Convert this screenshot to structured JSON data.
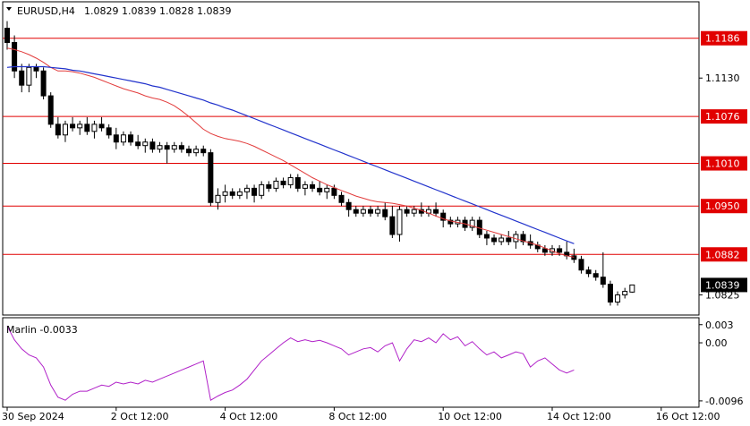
{
  "header": {
    "symbol": "EURUSD,H4",
    "ohlc": "1.0829 1.0839 1.0828 1.0839"
  },
  "colors": {
    "background": "#ffffff",
    "frame": "#000000",
    "grid": "none",
    "bull": "#000000",
    "bear": "#000000",
    "ma_fast": "#e23c3c",
    "ma_slow": "#2233cc",
    "level": "#e10000",
    "marlin": "#b020c8"
  },
  "chart_data": [
    {
      "type": "candlestick",
      "title": "EURUSD,H4",
      "ylim": [
        1.0798,
        1.1236
      ],
      "y_ticks": [
        1.0825,
        1.113
      ],
      "x_tick_labels": [
        "30 Sep 2024",
        "2 Oct 12:00",
        "4 Oct 12:00",
        "8 Oct 12:00",
        "10 Oct 12:00",
        "14 Oct 12:00",
        "16 Oct 12:00"
      ],
      "x_tick_index": [
        0,
        15,
        30,
        45,
        60,
        75,
        90
      ],
      "levels": [
        {
          "value": 1.1186,
          "label": "1.1186"
        },
        {
          "value": 1.1076,
          "label": "1.1076"
        },
        {
          "value": 1.101,
          "label": "1.1010"
        },
        {
          "value": 1.095,
          "label": "1.0950"
        },
        {
          "value": 1.0882,
          "label": "1.0882"
        }
      ],
      "current_price": {
        "value": 1.0839,
        "label": "1.0839"
      },
      "candles": [
        [
          1.12,
          1.121,
          1.117,
          1.118
        ],
        [
          1.118,
          1.119,
          1.113,
          1.114
        ],
        [
          1.114,
          1.115,
          1.111,
          1.112
        ],
        [
          1.112,
          1.115,
          1.111,
          1.1145
        ],
        [
          1.1145,
          1.115,
          1.113,
          1.114
        ],
        [
          1.114,
          1.1145,
          1.11,
          1.1105
        ],
        [
          1.1105,
          1.111,
          1.106,
          1.1065
        ],
        [
          1.1065,
          1.1075,
          1.1045,
          1.105
        ],
        [
          1.105,
          1.107,
          1.104,
          1.1065
        ],
        [
          1.1065,
          1.1075,
          1.1055,
          1.106
        ],
        [
          1.106,
          1.107,
          1.105,
          1.1065
        ],
        [
          1.1065,
          1.1075,
          1.105,
          1.1055
        ],
        [
          1.1055,
          1.107,
          1.1045,
          1.1065
        ],
        [
          1.1065,
          1.1075,
          1.1055,
          1.106
        ],
        [
          1.106,
          1.1065,
          1.1045,
          1.105
        ],
        [
          1.105,
          1.106,
          1.103,
          1.104
        ],
        [
          1.104,
          1.1055,
          1.1035,
          1.105
        ],
        [
          1.105,
          1.1055,
          1.1035,
          1.104
        ],
        [
          1.104,
          1.105,
          1.103,
          1.1035
        ],
        [
          1.1035,
          1.1045,
          1.1025,
          1.104
        ],
        [
          1.104,
          1.1045,
          1.1025,
          1.103
        ],
        [
          1.103,
          1.104,
          1.1025,
          1.1035
        ],
        [
          1.1035,
          1.104,
          1.101,
          1.103
        ],
        [
          1.103,
          1.104,
          1.1025,
          1.1035
        ],
        [
          1.1035,
          1.104,
          1.1025,
          1.103
        ],
        [
          1.103,
          1.1035,
          1.102,
          1.1025
        ],
        [
          1.1025,
          1.1035,
          1.102,
          1.103
        ],
        [
          1.103,
          1.1035,
          1.102,
          1.1025
        ],
        [
          1.1025,
          1.103,
          1.095,
          1.0955
        ],
        [
          1.0955,
          1.0975,
          1.0945,
          1.0965
        ],
        [
          1.0965,
          1.098,
          1.0955,
          1.097
        ],
        [
          1.097,
          1.0975,
          1.096,
          1.0965
        ],
        [
          1.0965,
          1.0975,
          1.096,
          1.097
        ],
        [
          1.097,
          1.098,
          1.096,
          1.0975
        ],
        [
          1.0975,
          1.098,
          1.0955,
          1.0965
        ],
        [
          1.0965,
          1.0985,
          1.096,
          1.098
        ],
        [
          1.098,
          1.0985,
          1.097,
          1.0975
        ],
        [
          1.0975,
          1.099,
          1.097,
          1.0985
        ],
        [
          1.0985,
          1.099,
          1.0975,
          1.098
        ],
        [
          1.098,
          1.0995,
          1.0975,
          1.099
        ],
        [
          1.099,
          1.0995,
          1.097,
          1.0975
        ],
        [
          1.0975,
          1.0985,
          1.0965,
          1.098
        ],
        [
          1.098,
          1.0985,
          1.097,
          1.0975
        ],
        [
          1.0975,
          1.0985,
          1.0965,
          1.097
        ],
        [
          1.097,
          1.098,
          1.096,
          1.0975
        ],
        [
          1.0975,
          1.098,
          1.096,
          1.0965
        ],
        [
          1.0965,
          1.097,
          1.095,
          1.0955
        ],
        [
          1.0955,
          1.096,
          1.0935,
          1.0945
        ],
        [
          1.0945,
          1.095,
          1.0935,
          1.094
        ],
        [
          1.094,
          1.095,
          1.0935,
          1.0945
        ],
        [
          1.0945,
          1.095,
          1.0935,
          1.094
        ],
        [
          1.094,
          1.095,
          1.0935,
          1.0945
        ],
        [
          1.0945,
          1.0955,
          1.093,
          1.0935
        ],
        [
          1.0935,
          1.095,
          1.0905,
          1.091
        ],
        [
          1.091,
          1.095,
          1.09,
          1.0945
        ],
        [
          1.0945,
          1.095,
          1.0935,
          1.094
        ],
        [
          1.094,
          1.095,
          1.0935,
          1.0945
        ],
        [
          1.0945,
          1.0955,
          1.0935,
          1.094
        ],
        [
          1.094,
          1.095,
          1.0935,
          1.0945
        ],
        [
          1.0945,
          1.0955,
          1.0935,
          1.094
        ],
        [
          1.094,
          1.0945,
          1.092,
          1.093
        ],
        [
          1.093,
          1.0935,
          1.092,
          1.0925
        ],
        [
          1.0925,
          1.0935,
          1.092,
          1.093
        ],
        [
          1.093,
          1.0935,
          1.0915,
          1.092
        ],
        [
          1.092,
          1.0935,
          1.0915,
          1.093
        ],
        [
          1.093,
          1.0935,
          1.0905,
          1.091
        ],
        [
          1.091,
          1.0915,
          1.0895,
          1.0905
        ],
        [
          1.0905,
          1.091,
          1.0895,
          1.09
        ],
        [
          1.09,
          1.091,
          1.0895,
          1.0905
        ],
        [
          1.0905,
          1.0915,
          1.0895,
          1.09
        ],
        [
          1.09,
          1.0915,
          1.089,
          1.091
        ],
        [
          1.091,
          1.0915,
          1.0895,
          1.09
        ],
        [
          1.09,
          1.091,
          1.089,
          1.0895
        ],
        [
          1.0895,
          1.09,
          1.0885,
          1.089
        ],
        [
          1.089,
          1.0895,
          1.088,
          1.0885
        ],
        [
          1.0885,
          1.0895,
          1.088,
          1.089
        ],
        [
          1.089,
          1.0895,
          1.088,
          1.0885
        ],
        [
          1.0885,
          1.09,
          1.0875,
          1.088
        ],
        [
          1.088,
          1.089,
          1.087,
          1.0875
        ],
        [
          1.0875,
          1.088,
          1.0855,
          1.086
        ],
        [
          1.086,
          1.0865,
          1.085,
          1.0855
        ],
        [
          1.0855,
          1.086,
          1.0845,
          1.085
        ],
        [
          1.085,
          1.0885,
          1.0835,
          1.084
        ],
        [
          1.084,
          1.0845,
          1.081,
          1.0815
        ],
        [
          1.0815,
          1.083,
          1.081,
          1.0825
        ],
        [
          1.0825,
          1.0835,
          1.082,
          1.083
        ],
        [
          1.0829,
          1.0839,
          1.0828,
          1.0839
        ]
      ],
      "ma_fast": [
        1.1172,
        1.117,
        1.1167,
        1.1163,
        1.1158,
        1.1152,
        1.1145,
        1.114,
        1.114,
        1.1139,
        1.1137,
        1.1134,
        1.1131,
        1.1127,
        1.1123,
        1.1119,
        1.1115,
        1.1112,
        1.1109,
        1.1105,
        1.1102,
        1.11,
        1.1096,
        1.1091,
        1.1084,
        1.1076,
        1.1067,
        1.1058,
        1.1052,
        1.1048,
        1.1045,
        1.1043,
        1.1041,
        1.1038,
        1.1034,
        1.1029,
        1.1024,
        1.1019,
        1.1014,
        1.1008,
        1.1002,
        1.0996,
        1.099,
        1.0985,
        1.098,
        1.0976,
        1.0972,
        1.0968,
        1.0964,
        1.0961,
        1.0958,
        1.0956,
        1.0955,
        1.0954,
        1.0952,
        1.095,
        1.0947,
        1.0944,
        1.094,
        1.0936,
        1.0932,
        1.0929,
        1.0927,
        1.0925,
        1.0922,
        1.0919,
        1.0916,
        1.0913,
        1.091,
        1.0907,
        1.0904,
        1.0901,
        1.0898,
        1.0895,
        1.0891,
        1.0887,
        1.0883,
        1.088,
        1.0878
      ],
      "ma_slow": [
        1.1145,
        1.1146,
        1.1146,
        1.1146,
        1.1146,
        1.1146,
        1.1145,
        1.1144,
        1.1143,
        1.1141,
        1.114,
        1.1138,
        1.1136,
        1.1134,
        1.1132,
        1.113,
        1.1128,
        1.1126,
        1.1124,
        1.1122,
        1.1119,
        1.1117,
        1.1114,
        1.1111,
        1.1108,
        1.1105,
        1.1102,
        1.1099,
        1.1095,
        1.1092,
        1.1088,
        1.1085,
        1.1081,
        1.1077,
        1.1073,
        1.1069,
        1.1065,
        1.1061,
        1.1057,
        1.1053,
        1.1049,
        1.1045,
        1.1041,
        1.1037,
        1.1033,
        1.1029,
        1.1025,
        1.1021,
        1.1017,
        1.1013,
        1.1009,
        1.1005,
        1.1001,
        1.0997,
        1.0993,
        1.0989,
        1.0985,
        1.0981,
        1.0977,
        1.0973,
        1.0969,
        1.0965,
        1.0961,
        1.0957,
        1.0953,
        1.0949,
        1.0945,
        1.0941,
        1.0937,
        1.0933,
        1.0929,
        1.0925,
        1.0921,
        1.0917,
        1.0913,
        1.0909,
        1.0905,
        1.0901,
        1.0897
      ]
    },
    {
      "type": "line",
      "title": "Marlin -0.0033",
      "ylim": [
        -0.0105,
        0.004
      ],
      "y_ticks": [
        {
          "value": 0.003,
          "label": "0.003"
        },
        {
          "value": 0.0,
          "label": "0.00"
        },
        {
          "value": -0.0096,
          "label": "-0.0096"
        }
      ],
      "series": [
        {
          "values": [
            0.0028,
            0.0005,
            -0.001,
            -0.002,
            -0.0025,
            -0.004,
            -0.007,
            -0.009,
            -0.0095,
            -0.0085,
            -0.008,
            -0.008,
            -0.0075,
            -0.007,
            -0.0072,
            -0.0065,
            -0.0068,
            -0.0065,
            -0.0068,
            -0.0062,
            -0.0065,
            -0.006,
            -0.0055,
            -0.005,
            -0.0045,
            -0.004,
            -0.0035,
            -0.003,
            -0.0095,
            -0.0088,
            -0.0082,
            -0.0078,
            -0.007,
            -0.006,
            -0.0045,
            -0.003,
            -0.002,
            -0.001,
            0.0,
            0.0008,
            0.0002,
            0.0005,
            0.0002,
            0.0004,
            0.0,
            -0.0005,
            -0.001,
            -0.002,
            -0.0015,
            -0.001,
            -0.0008,
            -0.0015,
            -0.0005,
            0.0,
            -0.003,
            -0.001,
            0.0005,
            0.0002,
            0.0008,
            0.0,
            0.0015,
            0.0005,
            0.001,
            -0.0005,
            0.0002,
            -0.001,
            -0.002,
            -0.0015,
            -0.0025,
            -0.002,
            -0.0015,
            -0.0018,
            -0.004,
            -0.003,
            -0.0025,
            -0.0035,
            -0.0045,
            -0.005,
            -0.0045
          ]
        }
      ]
    }
  ]
}
